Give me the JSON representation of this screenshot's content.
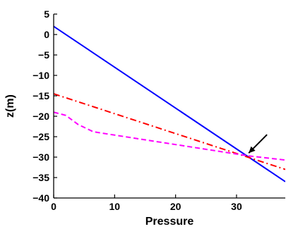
{
  "chart_data": {
    "type": "line",
    "title": "",
    "xlabel": "Pressure",
    "ylabel": "z(m)",
    "xlim": [
      0,
      38
    ],
    "ylim": [
      -40,
      5
    ],
    "xticks": [
      0,
      10,
      20,
      30
    ],
    "yticks": [
      5,
      0,
      -5,
      -10,
      -15,
      -20,
      -25,
      -30,
      -35,
      -40
    ],
    "grid": false,
    "legend": "none",
    "series": [
      {
        "color": "#0000ff",
        "style": "solid",
        "x": [
          0,
          38
        ],
        "y": [
          2,
          -36
        ]
      },
      {
        "color": "#ff0000",
        "style": "dashdot",
        "x": [
          0,
          38
        ],
        "y": [
          -14.5,
          -33
        ]
      },
      {
        "color": "#ff00ff",
        "style": "dashed",
        "x": [
          0,
          2,
          4,
          6.5,
          32,
          38
        ],
        "y": [
          -19,
          -19.8,
          -22,
          -23.8,
          -29.7,
          -30.7
        ]
      }
    ],
    "annotations": [
      {
        "type": "arrow",
        "x_from": 35,
        "y_from": -24.5,
        "x_to": 32,
        "y_to": -29,
        "color": "#000000"
      }
    ]
  }
}
